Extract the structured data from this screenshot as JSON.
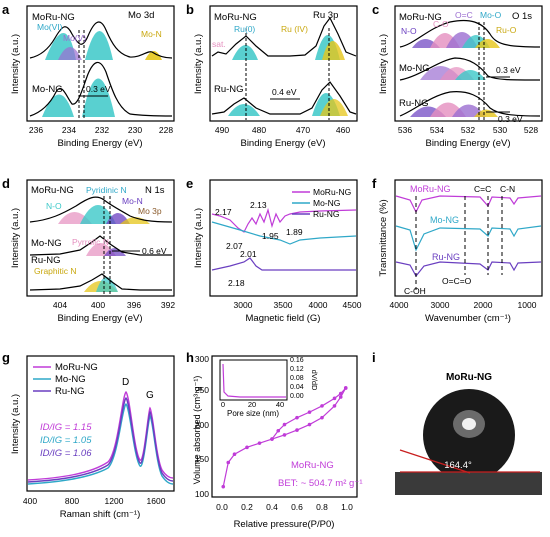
{
  "panels": {
    "a": {
      "letter": "a",
      "title": "Mo 3d",
      "xlabel": "Binding Energy (eV)",
      "ylabel": "Intensity (a.u.)",
      "xticks": [
        "236",
        "234",
        "232",
        "230",
        "228"
      ],
      "tops": [
        "MoRu-NG"
      ],
      "peaks": [
        "Mo(VI)",
        "Mo(V)",
        "Mo-N"
      ],
      "bottom": "Mo-NG",
      "shift": "0.3 eV"
    },
    "b": {
      "letter": "b",
      "title": "Ru 3p",
      "xlabel": "Binding Energy (eV)",
      "ylabel": "Intensity (a.u.)",
      "xticks": [
        "490",
        "480",
        "470",
        "460"
      ],
      "tops": [
        "MoRu-NG"
      ],
      "peaks": [
        "Ru(0)",
        "Ru (IV)",
        "sat."
      ],
      "bottom": "Ru-NG",
      "shift": "0.4 eV"
    },
    "c": {
      "letter": "c",
      "title": "O 1s",
      "xlabel": "Binding Energy (eV)",
      "ylabel": "Intensity (a.u.)",
      "xticks": [
        "536",
        "534",
        "532",
        "530",
        "528"
      ],
      "tops": [
        "MoRu-NG"
      ],
      "peaks": [
        "N-O",
        "C-O",
        "O=C",
        "Mo-O",
        "Ru-O"
      ],
      "mid": "Mo-NG",
      "bottom": "Ru-NG",
      "shift1": "0.3 eV",
      "shift2": "0.3 eV"
    },
    "d": {
      "letter": "d",
      "title": "N 1s",
      "xlabel": "Binding Energy (eV)",
      "ylabel": "Intensity (a.u.)",
      "xticks": [
        "404",
        "400",
        "396",
        "392"
      ],
      "tops": [
        "MoRu-NG"
      ],
      "peaks": [
        "Pyridinic N",
        "N-O",
        "Mo-N",
        "Mo 3p",
        "Pyrrolic N",
        "Graphitic N"
      ],
      "mid": "Mo-NG",
      "bottom": "Ru-NG",
      "shift": "0.6 eV"
    },
    "e": {
      "letter": "e",
      "xlabel": "Magnetic field (G)",
      "ylabel": "Intensity (a.u.)",
      "xticks": [
        "3000",
        "3500",
        "4000",
        "4500"
      ],
      "legend": [
        "MoRu-NG",
        "Mo-NG",
        "Ru-NG"
      ],
      "gvalues": [
        "2.17",
        "2.13",
        "2.07",
        "2.01",
        "1.95",
        "1.89",
        "2.18"
      ]
    },
    "f": {
      "letter": "f",
      "xlabel": "Wavenumber (cm⁻¹)",
      "ylabel": "Transmittance (%)",
      "xticks": [
        "4000",
        "3000",
        "2000",
        "1000"
      ],
      "series": [
        "MoRu-NG",
        "Mo-NG",
        "Ru-NG"
      ],
      "bands": [
        "C=C",
        "C-N",
        "O=C=O",
        "C-OH"
      ]
    },
    "g": {
      "letter": "g",
      "xlabel": "Raman shift (cm⁻¹)",
      "ylabel": "Intensity (a.u.)",
      "xticks": [
        "400",
        "800",
        "1200",
        "1600"
      ],
      "legend": [
        "MoRu-NG",
        "Mo-NG",
        "Ru-NG"
      ],
      "bands": [
        "D",
        "G"
      ],
      "ratios": [
        {
          "text": "ID/IG = 1.15"
        },
        {
          "text": "ID/IG = 1.05"
        },
        {
          "text": "ID/IG = 1.06"
        }
      ]
    },
    "h": {
      "letter": "h",
      "xlabel": "Relative pressure(P/P0)",
      "ylabel": "Volume absorbed (cm³ g⁻¹)",
      "xticks": [
        "0.0",
        "0.2",
        "0.4",
        "0.6",
        "0.8",
        "1.0"
      ],
      "yticks": [
        "100",
        "150",
        "200",
        "250",
        "300"
      ],
      "inset": {
        "xlabel": "Pore size (nm)",
        "ylabel": "dV/dD",
        "xticks": [
          "0",
          "20",
          "40"
        ],
        "yticks": [
          "0.00",
          "0.04",
          "0.08",
          "0.12",
          "0.16"
        ]
      },
      "sample": "MoRu-NG",
      "bet": "BET: ~ 504.7 m² g⁻¹"
    },
    "i": {
      "letter": "i",
      "sample": "MoRu-NG",
      "angle": "164.4°"
    }
  },
  "colors": {
    "moru": "#c03cd8",
    "mo": "#2fa8c8",
    "ru": "#6a3fc0",
    "cyan": "#3cc8c8",
    "yellow": "#e6c619",
    "purple": "#9b6ed1",
    "pink": "#e58fbf"
  },
  "chart_data": [
    {
      "type": "line",
      "panel": "e",
      "xlabel": "Magnetic field (G)",
      "xlim": [
        2700,
        4500
      ],
      "series": [
        {
          "name": "MoRu-NG",
          "g_values": [
            2.17,
            2.13,
            2.07,
            2.01,
            1.95,
            1.89
          ]
        },
        {
          "name": "Mo-NG"
        },
        {
          "name": "Ru-NG",
          "g_values": [
            2.18
          ]
        }
      ]
    },
    {
      "type": "line",
      "panel": "g",
      "xlabel": "Raman shift (cm-1)",
      "xlim": [
        400,
        1800
      ],
      "series": [
        {
          "name": "MoRu-NG",
          "ID_IG": 1.15
        },
        {
          "name": "Mo-NG",
          "ID_IG": 1.05
        },
        {
          "name": "Ru-NG",
          "ID_IG": 1.06
        }
      ]
    },
    {
      "type": "line",
      "panel": "h",
      "xlabel": "Relative pressure(P/P0)",
      "ylabel": "Volume absorbed (cm3 g-1)",
      "xlim": [
        0,
        1
      ],
      "ylim": [
        100,
        300
      ],
      "series": [
        {
          "name": "adsorption",
          "x": [
            0.01,
            0.05,
            0.1,
            0.2,
            0.3,
            0.4,
            0.5,
            0.6,
            0.7,
            0.8,
            0.9,
            0.95,
            0.99
          ],
          "y": [
            115,
            150,
            162,
            172,
            178,
            184,
            190,
            197,
            205,
            215,
            232,
            245,
            258
          ]
        },
        {
          "name": "desorption",
          "x": [
            0.99,
            0.95,
            0.9,
            0.8,
            0.7,
            0.6,
            0.5,
            0.45,
            0.4
          ],
          "y": [
            258,
            250,
            243,
            232,
            223,
            215,
            205,
            196,
            184
          ]
        }
      ]
    }
  ]
}
